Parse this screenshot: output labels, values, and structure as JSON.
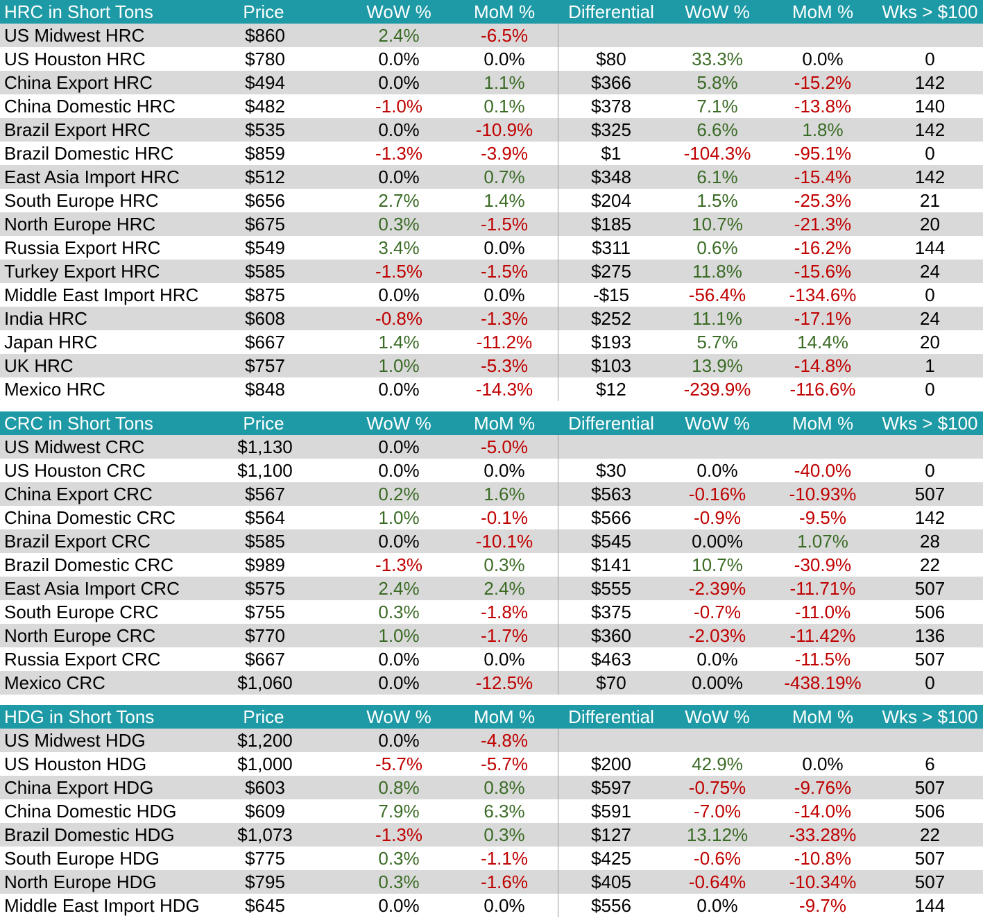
{
  "colors": {
    "header_bg": "#1e9aa6",
    "alt_row": "#d9d9d9",
    "positive": "#3a6b25",
    "negative": "#c00000"
  },
  "sections": [
    {
      "id": "hrc",
      "header": [
        "HRC in Short Tons",
        "Price",
        "WoW %",
        "MoM %",
        "Differential",
        "WoW %",
        "MoM %",
        "Wks > $100"
      ],
      "rows": [
        [
          "US Midwest HRC",
          "$860",
          "2.4%",
          "-6.5%",
          "",
          "",
          "",
          ""
        ],
        [
          "US Houston HRC",
          "$780",
          "0.0%",
          "0.0%",
          "$80",
          "33.3%",
          "0.0%",
          "0"
        ],
        [
          "China Export HRC",
          "$494",
          "0.0%",
          "1.1%",
          "$366",
          "5.8%",
          "-15.2%",
          "142"
        ],
        [
          "China Domestic HRC",
          "$482",
          "-1.0%",
          "0.1%",
          "$378",
          "7.1%",
          "-13.8%",
          "140"
        ],
        [
          "Brazil Export HRC",
          "$535",
          "0.0%",
          "-10.9%",
          "$325",
          "6.6%",
          "1.8%",
          "142"
        ],
        [
          "Brazil Domestic HRC",
          "$859",
          "-1.3%",
          "-3.9%",
          "$1",
          "-104.3%",
          "-95.1%",
          "0"
        ],
        [
          "East Asia Import HRC",
          "$512",
          "0.0%",
          "0.7%",
          "$348",
          "6.1%",
          "-15.4%",
          "142"
        ],
        [
          "South Europe HRC",
          "$656",
          "2.7%",
          "1.4%",
          "$204",
          "1.5%",
          "-25.3%",
          "21"
        ],
        [
          "North Europe HRC",
          "$675",
          "0.3%",
          "-1.5%",
          "$185",
          "10.7%",
          "-21.3%",
          "20"
        ],
        [
          "Russia Export HRC",
          "$549",
          "3.4%",
          "0.0%",
          "$311",
          "0.6%",
          "-16.2%",
          "144"
        ],
        [
          "Turkey Export HRC",
          "$585",
          "-1.5%",
          "-1.5%",
          "$275",
          "11.8%",
          "-15.6%",
          "24"
        ],
        [
          "Middle East Import HRC",
          "$875",
          "0.0%",
          "0.0%",
          "-$15",
          "-56.4%",
          "-134.6%",
          "0"
        ],
        [
          "India HRC",
          "$608",
          "-0.8%",
          "-1.3%",
          "$252",
          "11.1%",
          "-17.1%",
          "24"
        ],
        [
          "Japan HRC",
          "$667",
          "1.4%",
          "-11.2%",
          "$193",
          "5.7%",
          "14.4%",
          "20"
        ],
        [
          "UK HRC",
          "$757",
          "1.0%",
          "-5.3%",
          "$103",
          "13.9%",
          "-14.8%",
          "1"
        ],
        [
          "Mexico HRC",
          "$848",
          "0.0%",
          "-14.3%",
          "$12",
          "-239.9%",
          "-116.6%",
          "0"
        ]
      ]
    },
    {
      "id": "crc",
      "header": [
        "CRC in Short Tons",
        "Price",
        "WoW %",
        "MoM %",
        "Differential",
        "WoW %",
        "MoM %",
        "Wks > $100"
      ],
      "rows": [
        [
          "US Midwest CRC",
          "$1,130",
          "0.0%",
          "-5.0%",
          "",
          "",
          "",
          ""
        ],
        [
          "US Houston CRC",
          "$1,100",
          "0.0%",
          "0.0%",
          "$30",
          "0.0%",
          "-40.0%",
          "0"
        ],
        [
          "China Export CRC",
          "$567",
          "0.2%",
          "1.6%",
          "$563",
          "-0.16%",
          "-10.93%",
          "507"
        ],
        [
          "China Domestic CRC",
          "$564",
          "1.0%",
          "-0.1%",
          "$566",
          "-0.9%",
          "-9.5%",
          "142"
        ],
        [
          "Brazil Export CRC",
          "$585",
          "0.0%",
          "-10.1%",
          "$545",
          "0.00%",
          "1.07%",
          "28"
        ],
        [
          "Brazil Domestic CRC",
          "$989",
          "-1.3%",
          "0.3%",
          "$141",
          "10.7%",
          "-30.9%",
          "22"
        ],
        [
          "East Asia Import CRC",
          "$575",
          "2.4%",
          "2.4%",
          "$555",
          "-2.39%",
          "-11.71%",
          "507"
        ],
        [
          "South Europe CRC",
          "$755",
          "0.3%",
          "-1.8%",
          "$375",
          "-0.7%",
          "-11.0%",
          "506"
        ],
        [
          "North Europe CRC",
          "$770",
          "1.0%",
          "-1.7%",
          "$360",
          "-2.03%",
          "-11.42%",
          "136"
        ],
        [
          "Russia Export CRC",
          "$667",
          "0.0%",
          "0.0%",
          "$463",
          "0.0%",
          "-11.5%",
          "507"
        ],
        [
          "Mexico CRC",
          "$1,060",
          "0.0%",
          "-12.5%",
          "$70",
          "0.00%",
          "-438.19%",
          "0"
        ]
      ]
    },
    {
      "id": "hdg",
      "header": [
        "HDG in Short Tons",
        "Price",
        "WoW %",
        "MoM %",
        "Differential",
        "WoW %",
        "MoM %",
        "Wks > $100"
      ],
      "rows": [
        [
          "US Midwest HDG",
          "$1,200",
          "0.0%",
          "-4.8%",
          "",
          "",
          "",
          ""
        ],
        [
          "US Houston HDG",
          "$1,000",
          "-5.7%",
          "-5.7%",
          "$200",
          "42.9%",
          "0.0%",
          "6"
        ],
        [
          "China Export HDG",
          "$603",
          "0.8%",
          "0.8%",
          "$597",
          "-0.75%",
          "-9.76%",
          "507"
        ],
        [
          "China Domestic HDG",
          "$609",
          "7.9%",
          "6.3%",
          "$591",
          "-7.0%",
          "-14.0%",
          "506"
        ],
        [
          "Brazil Domestic HDG",
          "$1,073",
          "-1.3%",
          "0.3%",
          "$127",
          "13.12%",
          "-33.28%",
          "22"
        ],
        [
          "South Europe HDG",
          "$775",
          "0.3%",
          "-1.1%",
          "$425",
          "-0.6%",
          "-10.8%",
          "507"
        ],
        [
          "North Europe HDG",
          "$795",
          "0.3%",
          "-1.6%",
          "$405",
          "-0.64%",
          "-10.34%",
          "507"
        ],
        [
          "Middle East Import HDG",
          "$645",
          "0.0%",
          "0.0%",
          "$556",
          "0.0%",
          "-9.7%",
          "144"
        ]
      ]
    }
  ]
}
